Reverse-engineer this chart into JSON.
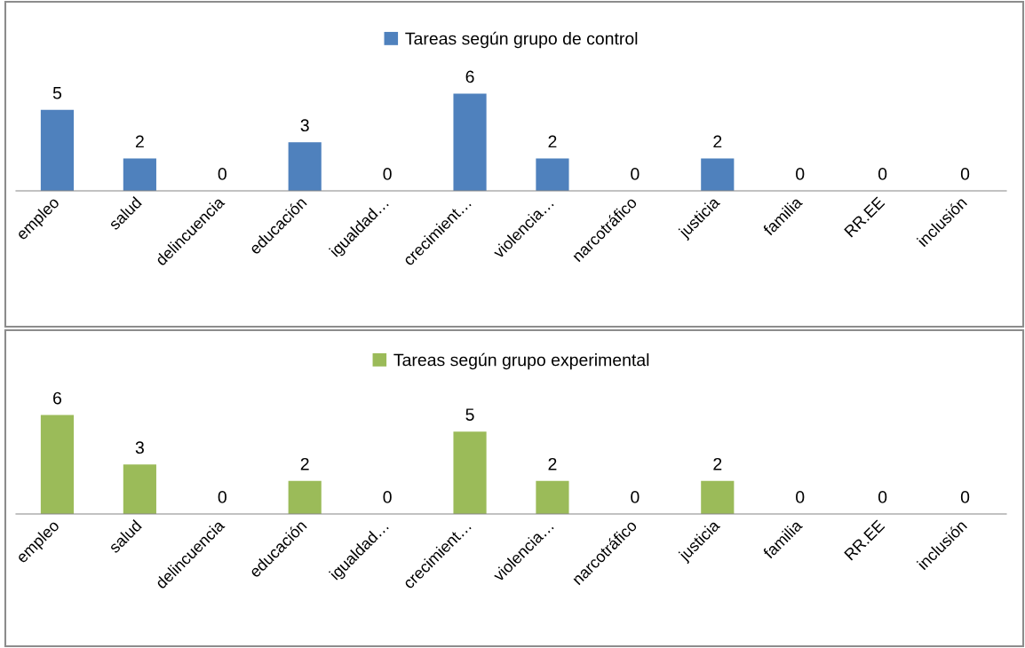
{
  "chart_data": [
    {
      "type": "bar",
      "categories": [
        "empleo",
        "salud",
        "delincuencia",
        "educación",
        "igualdad…",
        "crecimient…",
        "violencia…",
        "narcotráfico",
        "justicia",
        "familia",
        "RR.EE",
        "inclusión"
      ],
      "series": [
        {
          "name": "Tareas según grupo de control",
          "color": "#4f81bd",
          "values": [
            5,
            2,
            0,
            3,
            0,
            6,
            2,
            0,
            2,
            0,
            0,
            0
          ]
        }
      ],
      "data_labels": true,
      "legend": "top",
      "tick_labels": "x",
      "grid": false
    },
    {
      "type": "bar",
      "categories": [
        "empleo",
        "salud",
        "delincuencia",
        "educación",
        "igualdad…",
        "crecimient…",
        "violencia…",
        "narcotráfico",
        "justicia",
        "familia",
        "RR.EE",
        "inclusión"
      ],
      "series": [
        {
          "name": "Tareas según grupo experimental",
          "color": "#9bbb59",
          "values": [
            6,
            3,
            0,
            2,
            0,
            5,
            2,
            0,
            2,
            0,
            0,
            0
          ]
        }
      ],
      "data_labels": true,
      "legend": "top",
      "tick_labels": "x",
      "grid": false
    }
  ]
}
